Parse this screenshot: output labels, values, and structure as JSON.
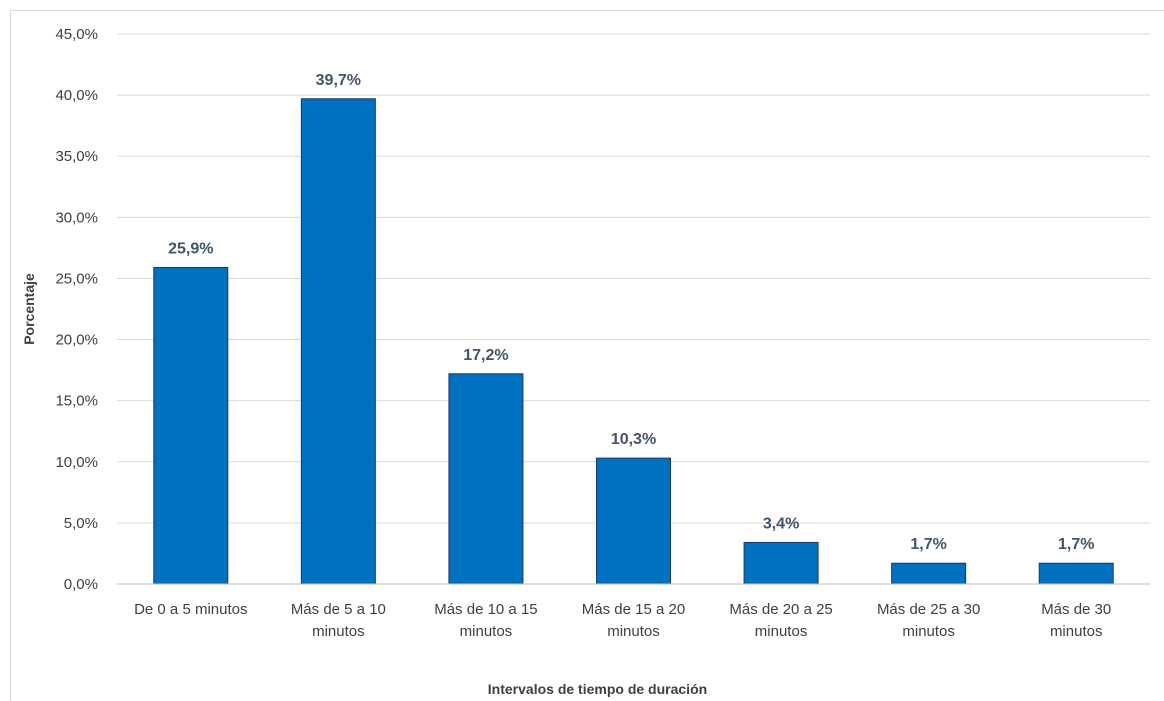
{
  "chart_data": {
    "type": "bar",
    "title": "",
    "xlabel": "Intervalos de tiempo de duración",
    "ylabel": "Porcentaje",
    "categories": [
      [
        "De 0 a 5 minutos"
      ],
      [
        "Más de  5 a 10",
        "minutos"
      ],
      [
        "Más de 10 a 15",
        "minutos"
      ],
      [
        "Más de 15 a 20",
        "minutos"
      ],
      [
        "Más de 20 a 25",
        "minutos"
      ],
      [
        "Más de 25 a 30",
        "minutos"
      ],
      [
        "Más de 30",
        "minutos"
      ]
    ],
    "values": [
      25.9,
      39.7,
      17.2,
      10.3,
      3.4,
      1.7,
      1.7
    ],
    "data_labels": [
      "25,9%",
      "39,7%",
      "17,2%",
      "10,3%",
      "3,4%",
      "1,7%",
      "1,7%"
    ],
    "ylim": [
      0,
      45
    ],
    "yticks": [
      0,
      5,
      10,
      15,
      20,
      25,
      30,
      35,
      40,
      45
    ],
    "ytick_labels": [
      "0,0%",
      "5,0%",
      "10,0%",
      "15,0%",
      "20,0%",
      "25,0%",
      "30,0%",
      "35,0%",
      "40,0%",
      "45,0%"
    ],
    "grid": true,
    "legend": "none",
    "bar_color": "#0070c0",
    "bar_edge_color": "#1f3864",
    "data_label_color": "#44546a"
  }
}
